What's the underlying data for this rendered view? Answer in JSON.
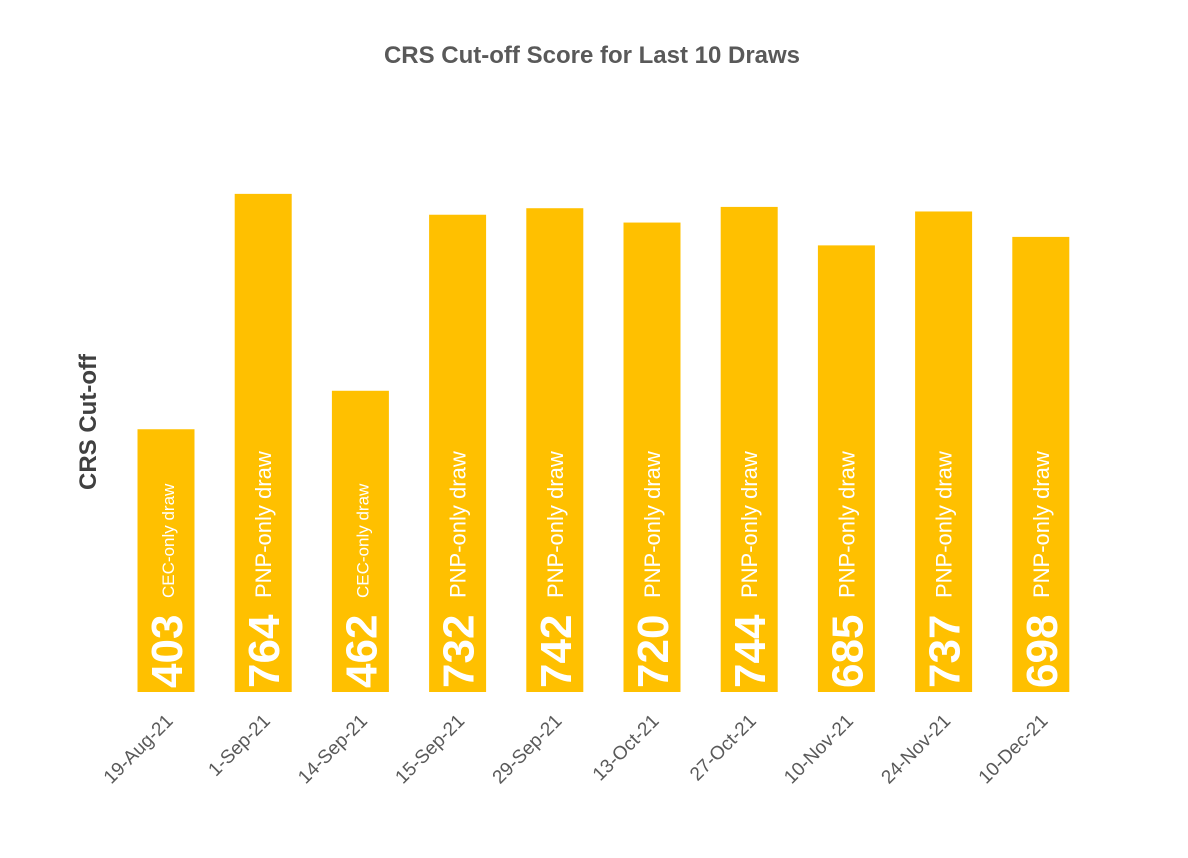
{
  "chart_data": {
    "type": "bar",
    "title": "CRS Cut-off Score for Last 10 Draws",
    "xlabel": "",
    "ylabel": "CRS Cut-off",
    "categories": [
      "19-Aug-21",
      "1-Sep-21",
      "14-Sep-21",
      "15-Sep-21",
      "29-Sep-21",
      "13-Oct-21",
      "27-Oct-21",
      "10-Nov-21",
      "24-Nov-21",
      "10-Dec-21"
    ],
    "values": [
      403,
      764,
      462,
      732,
      742,
      720,
      744,
      685,
      737,
      698
    ],
    "annotations": [
      "CEC-only draw",
      "PNP-only draw",
      "CEC-only draw",
      "PNP-only draw",
      "PNP-only draw",
      "PNP-only draw",
      "PNP-only draw",
      "PNP-only draw",
      "PNP-only draw",
      "PNP-only draw"
    ],
    "grid": false,
    "legend": "none",
    "bar_color": "#FFC000"
  }
}
